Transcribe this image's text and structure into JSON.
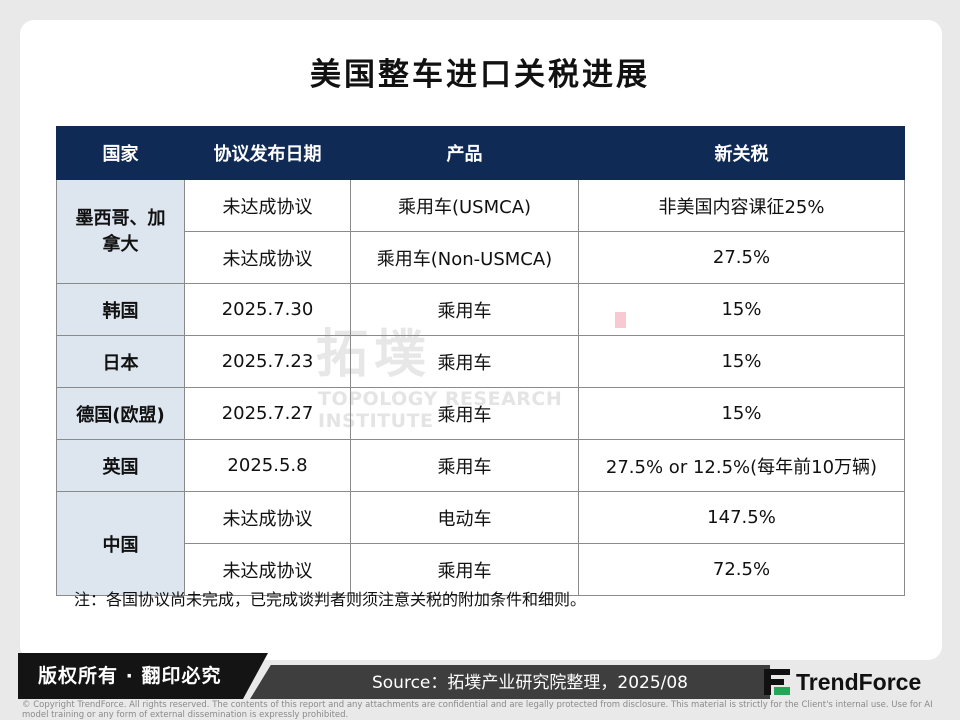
{
  "title": "美国整车进口关税进展",
  "watermark": {
    "cn": "拓墣",
    "en": "TOPOLOGY RESEARCH INSTITUTE"
  },
  "table": {
    "headers": [
      "国家",
      "协议发布日期",
      "产品",
      "新关税"
    ],
    "groups": [
      {
        "country": "墨西哥、加拿大",
        "rows": [
          {
            "date": "未达成协议",
            "product": "乘用车(USMCA)",
            "tariff": "非美国内容课征25%"
          },
          {
            "date": "未达成协议",
            "product": "乘用车(Non-USMCA)",
            "tariff": "27.5%"
          }
        ]
      },
      {
        "country": "韩国",
        "rows": [
          {
            "date": "2025.7.30",
            "product": "乘用车",
            "tariff": "15%"
          }
        ]
      },
      {
        "country": "日本",
        "rows": [
          {
            "date": "2025.7.23",
            "product": "乘用车",
            "tariff": "15%"
          }
        ]
      },
      {
        "country": "德国(欧盟)",
        "rows": [
          {
            "date": "2025.7.27",
            "product": "乘用车",
            "tariff": "15%"
          }
        ]
      },
      {
        "country": "英国",
        "rows": [
          {
            "date": "2025.5.8",
            "product": "乘用车",
            "tariff": "27.5% or 12.5%(每年前10万辆)"
          }
        ]
      },
      {
        "country": "中国",
        "rows": [
          {
            "date": "未达成协议",
            "product": "电动车",
            "tariff": "147.5%"
          },
          {
            "date": "未达成协议",
            "product": "乘用车",
            "tariff": "72.5%"
          }
        ]
      }
    ]
  },
  "note": "注：各国协议尚未完成，已完成谈判者则须注意关税的附加条件和细则。",
  "footer": {
    "copyright": "版权所有 · 翻印必究",
    "source": "Source：拓墣产业研究院整理，2025/08",
    "brand": "TrendForce",
    "brand_icon": "trendforce-logo-icon",
    "disclaimer": "© Copyright TrendForce. All rights reserved. The contents of this report and any attachments are confidential and are legally protected from disclosure. This material is strictly for the Client's internal use. Use for AI model training or any form of external dissemination is expressly prohibited."
  },
  "colors": {
    "header_bg": "#0f2a55",
    "country_bg": "#dde5ef",
    "brand_green": "#23a657"
  }
}
